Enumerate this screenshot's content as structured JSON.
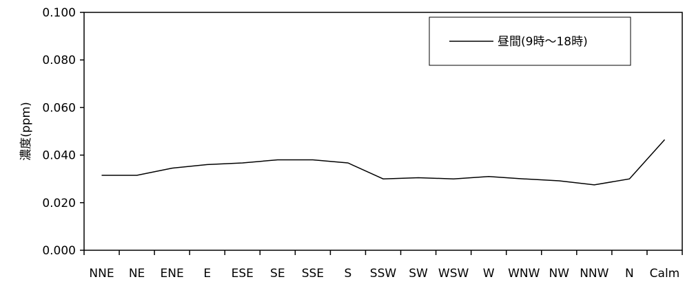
{
  "chart_data": {
    "type": "line",
    "title": "",
    "xlabel": "",
    "ylabel": "濃度(ppm)",
    "categories": [
      "NNE",
      "NE",
      "ENE",
      "E",
      "ESE",
      "SE",
      "SSE",
      "S",
      "SSW",
      "SW",
      "WSW",
      "W",
      "WNW",
      "NW",
      "NNW",
      "N",
      "Calm"
    ],
    "series": [
      {
        "name": "昼間(9時～18時)",
        "values": [
          0.0315,
          0.0315,
          0.0345,
          0.036,
          0.0367,
          0.038,
          0.038,
          0.0367,
          0.03,
          0.0305,
          0.03,
          0.031,
          0.03,
          0.0292,
          0.0275,
          0.03,
          0.0465
        ],
        "color": "#000000"
      }
    ],
    "ylim": [
      0,
      0.1
    ],
    "yticks": [
      "0.000",
      "0.020",
      "0.040",
      "0.060",
      "0.080",
      "0.100"
    ],
    "grid": false,
    "legend_position": "top-right, inside plot"
  }
}
